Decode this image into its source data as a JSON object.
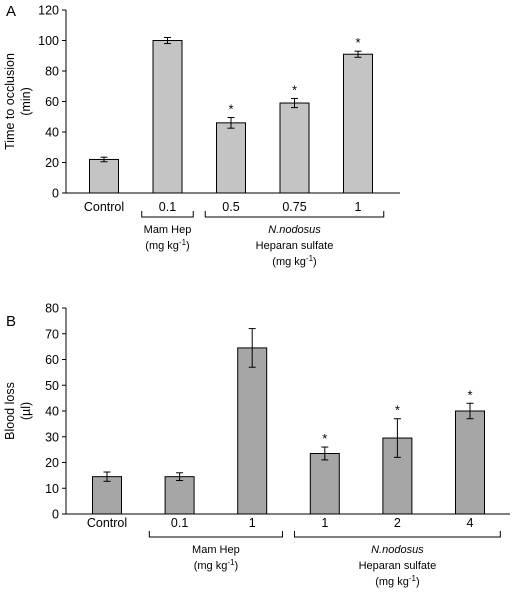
{
  "chart_data": [
    {
      "panel": "A",
      "type": "bar",
      "ylabel": [
        "Time to occlusion",
        "(min)"
      ],
      "ylim": [
        0,
        120
      ],
      "yticks": [
        0,
        20,
        40,
        60,
        80,
        100,
        120
      ],
      "categories": [
        "Control",
        "0.1",
        "0.5",
        "0.75",
        "1"
      ],
      "values": [
        22,
        100,
        46,
        59,
        91
      ],
      "errors": [
        1.5,
        2,
        3.5,
        3,
        2
      ],
      "significant": [
        false,
        false,
        true,
        true,
        true
      ],
      "star": "*",
      "bar_color": "#c4c4c4",
      "groups": [
        {
          "lines": [
            "Mam Hep",
            "(mg kg-1)"
          ],
          "span": [
            1,
            1
          ]
        },
        {
          "lines": [
            "N.nodosus",
            "Heparan sulfate",
            "(mg kg-1)"
          ],
          "span": [
            2,
            4
          ]
        }
      ]
    },
    {
      "panel": "B",
      "type": "bar",
      "ylabel": [
        "Blood loss",
        "(µl)"
      ],
      "ylim": [
        0,
        80
      ],
      "yticks": [
        0,
        10,
        20,
        30,
        40,
        50,
        60,
        70,
        80
      ],
      "categories": [
        "Control",
        "0.1",
        "1",
        "1",
        "2",
        "4"
      ],
      "values": [
        14.5,
        14.5,
        64.5,
        23.5,
        29.5,
        40
      ],
      "errors": [
        1.8,
        1.5,
        7.5,
        2.5,
        7.5,
        3
      ],
      "significant": [
        false,
        false,
        false,
        true,
        true,
        true
      ],
      "star": "*",
      "bar_color": "#a6a6a6",
      "groups": [
        {
          "lines": [
            "Mam Hep",
            "(mg kg-1)"
          ],
          "span": [
            1,
            2
          ]
        },
        {
          "lines": [
            "N.nodosus",
            "Heparan sulfate",
            "(mg kg-1)"
          ],
          "span": [
            3,
            5
          ]
        }
      ]
    }
  ]
}
